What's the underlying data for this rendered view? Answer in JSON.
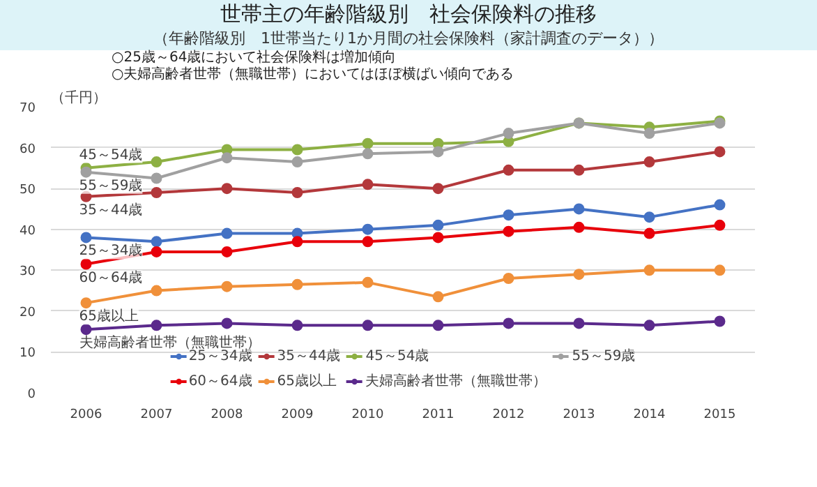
{
  "chart_data": {
    "type": "line",
    "title": "世帯主の年齢階級別　社会保険料の推移",
    "subtitle": "（年齢階級別　1世帯当たり1か月間の社会保険料（家計調査のデータ））",
    "ylabel": "（千円）",
    "categories": [
      "2006",
      "2007",
      "2008",
      "2009",
      "2010",
      "2011",
      "2012",
      "2013",
      "2014",
      "2015"
    ],
    "series": [
      {
        "name": "25～34歳",
        "color": "#4472c4",
        "values": [
          38,
          37,
          39,
          39,
          40,
          41,
          43.5,
          45,
          43,
          46
        ]
      },
      {
        "name": "35～44歳",
        "color": "#b3383b",
        "values": [
          48,
          49,
          50,
          49,
          51,
          50,
          54.5,
          54.5,
          56.5,
          59
        ]
      },
      {
        "name": "45～54歳",
        "color": "#8db043",
        "values": [
          55,
          56.5,
          59.5,
          59.5,
          61,
          61,
          61.5,
          66,
          65,
          66.5
        ]
      },
      {
        "name": "55～59歳",
        "color": "#a0a0a0",
        "values": [
          54,
          52.5,
          57.5,
          56.5,
          58.5,
          59,
          63.5,
          66,
          63.5,
          66
        ]
      },
      {
        "name": "60～64歳",
        "color": "#e8000b",
        "values": [
          31.5,
          34.5,
          34.5,
          37,
          37,
          38,
          39.5,
          40.5,
          39,
          41
        ]
      },
      {
        "name": "65歳以上",
        "color": "#f0903a",
        "values": [
          22,
          25,
          26,
          26.5,
          27,
          23.5,
          28,
          29,
          30,
          30
        ]
      },
      {
        "name": "夫婦高齢者世帯（無職世帯）",
        "color": "#5b2a8c",
        "values": [
          15.5,
          16.5,
          17,
          16.5,
          16.5,
          16.5,
          17,
          17,
          16.5,
          17.5
        ]
      }
    ],
    "ylim": [
      0,
      70
    ],
    "yticks": [
      0,
      10,
      20,
      30,
      40,
      50,
      60,
      70
    ],
    "grid": "y",
    "legend": "bottom",
    "marker": "circle",
    "line_style": "solid",
    "annotations": [
      "○25歳～64歳において社会保険料は増加傾向",
      "○夫婦高齢者世帯（無職世帯）においてはほぼ横ばい傾向である"
    ]
  }
}
